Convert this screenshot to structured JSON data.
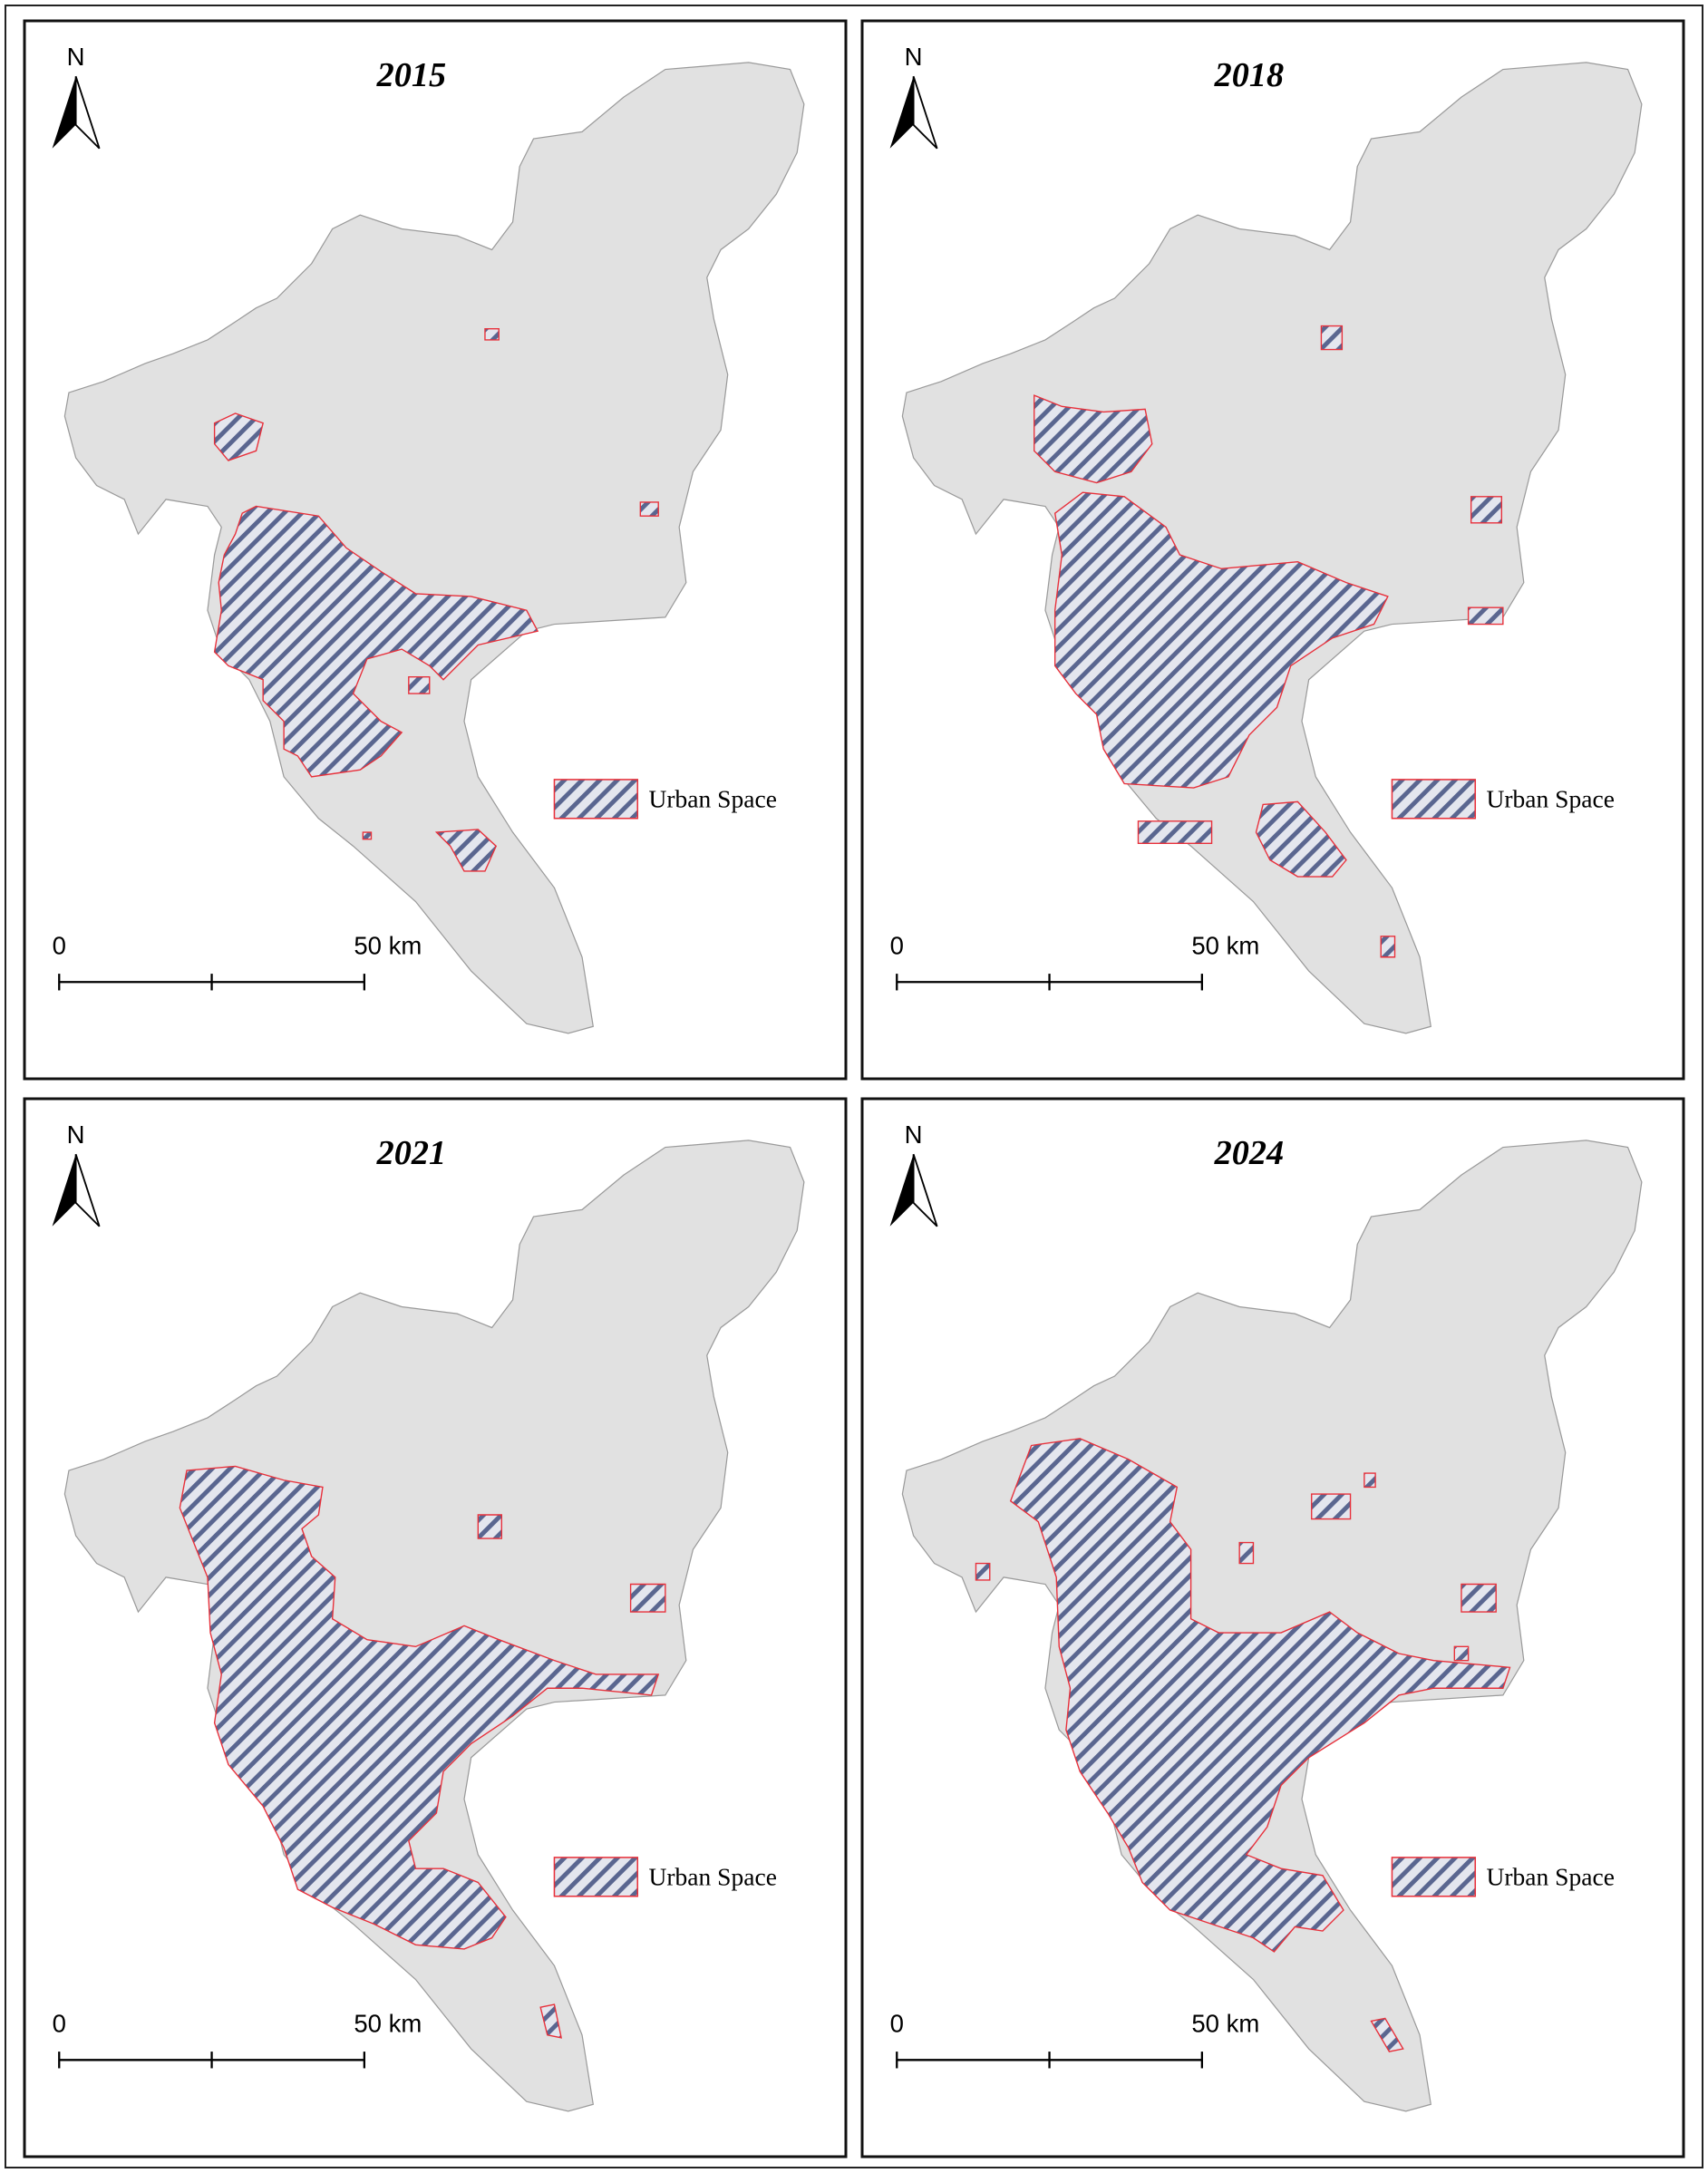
{
  "panels": [
    {
      "title": "2015",
      "north": "N",
      "legend": "Urban Space",
      "scale_start": "0",
      "scale_end": "50 km"
    },
    {
      "title": "2018",
      "north": "N",
      "legend": "Urban Space",
      "scale_start": "0",
      "scale_end": "50 km"
    },
    {
      "title": "2021",
      "north": "N",
      "legend": "Urban Space",
      "scale_start": "0",
      "scale_end": "50 km"
    },
    {
      "title": "2024",
      "north": "N",
      "legend": "Urban Space",
      "scale_start": "0",
      "scale_end": "50 km"
    }
  ]
}
